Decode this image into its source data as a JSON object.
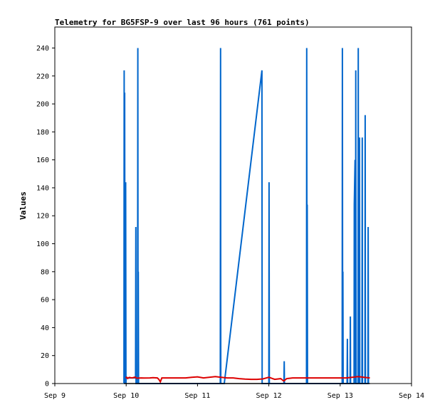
{
  "chart_data": {
    "type": "line",
    "title": "Telemetry for BG5FSP-9 over last 96 hours (761 points)",
    "xlabel": "",
    "ylabel": "Values",
    "x_axis_type": "time",
    "xlim": [
      "2025-09-09",
      "2025-09-14"
    ],
    "ylim": [
      0,
      255
    ],
    "x_ticks": [
      "Sep 9",
      "Sep 10",
      "Sep 11",
      "Sep 12",
      "Sep 13",
      "Sep 14"
    ],
    "x_tick_values": [
      "2025-09-09",
      "2025-09-10",
      "2025-09-11",
      "2025-09-12",
      "2025-09-13",
      "2025-09-14"
    ],
    "y_ticks": [
      0,
      20,
      40,
      60,
      80,
      100,
      120,
      140,
      160,
      180,
      200,
      220,
      240
    ],
    "grid": false,
    "legend": "none",
    "series": [
      {
        "color": "#0066cc",
        "points": [
          [
            "2025-09-09T23:15",
            0
          ],
          [
            "2025-09-09T23:20",
            224
          ],
          [
            "2025-09-09T23:25",
            0
          ],
          [
            "2025-09-09T23:30",
            208
          ],
          [
            "2025-09-09T23:35",
            0
          ],
          [
            "2025-09-09T23:40",
            96
          ],
          [
            "2025-09-09T23:45",
            0
          ],
          [
            "2025-09-09T23:50",
            144
          ],
          [
            "2025-09-09T23:55",
            0
          ],
          [
            "2025-09-10T00:00",
            4
          ],
          [
            "2025-09-10T03:10",
            4
          ],
          [
            "2025-09-10T03:15",
            112
          ],
          [
            "2025-09-10T03:20",
            0
          ],
          [
            "2025-09-10T03:50",
            0
          ],
          [
            "2025-09-10T03:55",
            240
          ],
          [
            "2025-09-10T04:00",
            0
          ],
          [
            "2025-09-10T04:05",
            80
          ],
          [
            "2025-09-10T04:10",
            0
          ],
          [
            "2025-09-11T07:40",
            0
          ],
          [
            "2025-09-11T07:45",
            240
          ],
          [
            "2025-09-11T07:50",
            0
          ],
          [
            "2025-09-11T09:00",
            0
          ],
          [
            "2025-09-11T21:40",
            224
          ],
          [
            "2025-09-11T21:45",
            0
          ],
          [
            "2025-09-12T00:00",
            0
          ],
          [
            "2025-09-12T00:05",
            144
          ],
          [
            "2025-09-12T00:10",
            0
          ],
          [
            "2025-09-12T05:05",
            0
          ],
          [
            "2025-09-12T05:10",
            16
          ],
          [
            "2025-09-12T05:15",
            0
          ],
          [
            "2025-09-12T12:40",
            0
          ],
          [
            "2025-09-12T12:45",
            240
          ],
          [
            "2025-09-12T12:50",
            0
          ],
          [
            "2025-09-12T12:55",
            128
          ],
          [
            "2025-09-12T13:00",
            0
          ],
          [
            "2025-09-13T00:40",
            0
          ],
          [
            "2025-09-13T00:45",
            240
          ],
          [
            "2025-09-13T00:50",
            0
          ],
          [
            "2025-09-13T00:55",
            80
          ],
          [
            "2025-09-13T01:00",
            0
          ],
          [
            "2025-09-13T02:20",
            0
          ],
          [
            "2025-09-13T02:25",
            32
          ],
          [
            "2025-09-13T02:30",
            0
          ],
          [
            "2025-09-13T03:20",
            0
          ],
          [
            "2025-09-13T03:25",
            48
          ],
          [
            "2025-09-13T03:30",
            0
          ],
          [
            "2025-09-13T04:40",
            0
          ],
          [
            "2025-09-13T04:45",
            128
          ],
          [
            "2025-09-13T04:50",
            140
          ],
          [
            "2025-09-13T05:00",
            160
          ],
          [
            "2025-09-13T05:10",
            0
          ],
          [
            "2025-09-13T05:15",
            224
          ],
          [
            "2025-09-13T05:20",
            0
          ],
          [
            "2025-09-13T06:00",
            0
          ],
          [
            "2025-09-13T06:05",
            240
          ],
          [
            "2025-09-13T06:10",
            0
          ],
          [
            "2025-09-13T06:30",
            176
          ],
          [
            "2025-09-13T06:35",
            0
          ],
          [
            "2025-09-13T07:20",
            0
          ],
          [
            "2025-09-13T07:25",
            176
          ],
          [
            "2025-09-13T07:30",
            0
          ],
          [
            "2025-09-13T08:20",
            0
          ],
          [
            "2025-09-13T08:25",
            192
          ],
          [
            "2025-09-13T08:30",
            0
          ],
          [
            "2025-09-13T09:20",
            0
          ],
          [
            "2025-09-13T09:25",
            112
          ],
          [
            "2025-09-13T09:30",
            0
          ]
        ]
      },
      {
        "color": "#dd0000",
        "points": [
          [
            "2025-09-09T23:50",
            4
          ],
          [
            "2025-09-10T00:10",
            4.5
          ],
          [
            "2025-09-10T00:30",
            3.6
          ],
          [
            "2025-09-10T01:00",
            4.4
          ],
          [
            "2025-09-10T02:00",
            4.0
          ],
          [
            "2025-09-10T03:00",
            4.6
          ],
          [
            "2025-09-10T03:30",
            3.8
          ],
          [
            "2025-09-10T05:00",
            4.0
          ],
          [
            "2025-09-10T06:00",
            3.9
          ],
          [
            "2025-09-10T08:00",
            4.0
          ],
          [
            "2025-09-10T09:00",
            4.2
          ],
          [
            "2025-09-10T10:30",
            4.0
          ],
          [
            "2025-09-10T11:00",
            3.0
          ],
          [
            "2025-09-10T11:30",
            1.2
          ],
          [
            "2025-09-10T12:00",
            4.0
          ],
          [
            "2025-09-10T14:00",
            4.0
          ],
          [
            "2025-09-10T18:00",
            4.0
          ],
          [
            "2025-09-10T20:00",
            4.0
          ],
          [
            "2025-09-10T22:00",
            4.5
          ],
          [
            "2025-09-11T00:00",
            4.8
          ],
          [
            "2025-09-11T02:00",
            4.0
          ],
          [
            "2025-09-11T06:00",
            5.0
          ],
          [
            "2025-09-11T08:00",
            4.5
          ],
          [
            "2025-09-11T10:00",
            4.0
          ],
          [
            "2025-09-11T12:00",
            4.0
          ],
          [
            "2025-09-11T14:00",
            3.5
          ],
          [
            "2025-09-11T16:00",
            3.2
          ],
          [
            "2025-09-11T18:00",
            3.0
          ],
          [
            "2025-09-11T20:00",
            3.0
          ],
          [
            "2025-09-11T22:00",
            3.3
          ],
          [
            "2025-09-12T00:00",
            4.5
          ],
          [
            "2025-09-12T02:00",
            3.0
          ],
          [
            "2025-09-12T04:00",
            3.5
          ],
          [
            "2025-09-12T05:00",
            1.8
          ],
          [
            "2025-09-12T06:00",
            3.5
          ],
          [
            "2025-09-12T08:00",
            4.0
          ],
          [
            "2025-09-12T12:00",
            4.0
          ],
          [
            "2025-09-12T16:00",
            4.0
          ],
          [
            "2025-09-12T20:00",
            4.0
          ],
          [
            "2025-09-13T00:00",
            4.0
          ],
          [
            "2025-09-13T02:00",
            4.0
          ],
          [
            "2025-09-13T04:00",
            4.5
          ],
          [
            "2025-09-13T06:00",
            5.0
          ],
          [
            "2025-09-13T08:00",
            4.5
          ],
          [
            "2025-09-13T10:00",
            4.0
          ]
        ]
      },
      {
        "color": "#000000",
        "points": [
          [
            "2025-09-09T23:15",
            0
          ],
          [
            "2025-09-13T10:00",
            0
          ]
        ]
      }
    ]
  }
}
